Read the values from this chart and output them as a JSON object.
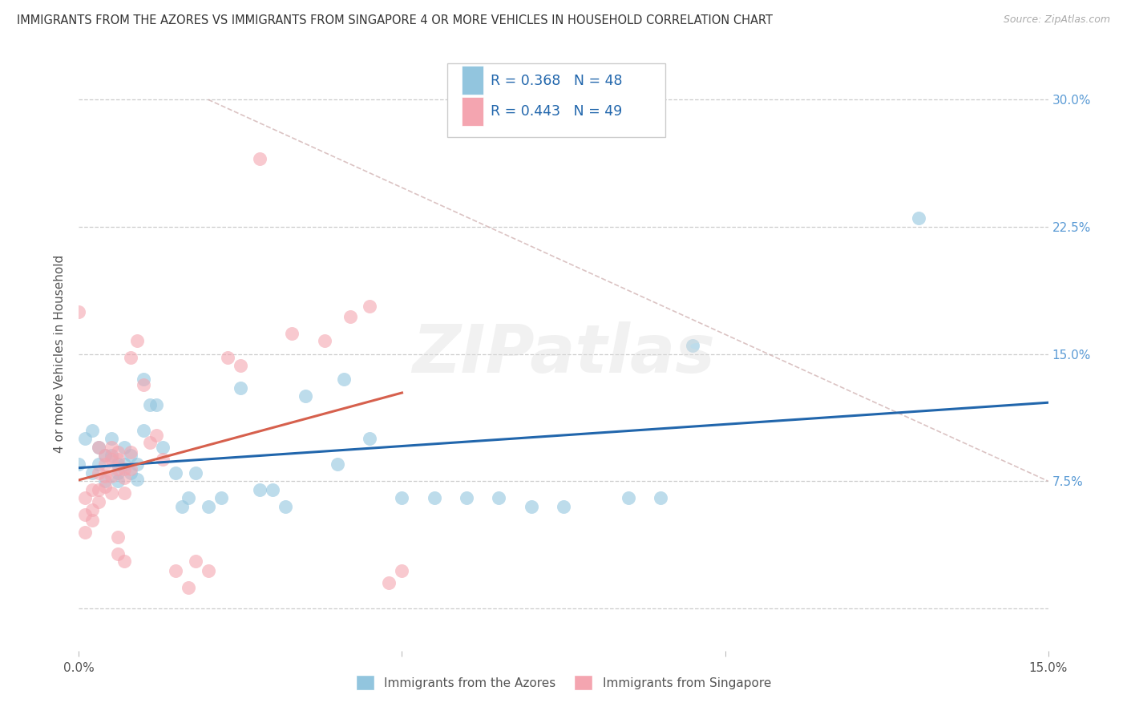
{
  "title": "IMMIGRANTS FROM THE AZORES VS IMMIGRANTS FROM SINGAPORE 4 OR MORE VEHICLES IN HOUSEHOLD CORRELATION CHART",
  "source": "Source: ZipAtlas.com",
  "xlabel_label": "Immigrants from the Azores",
  "xlabel_label2": "Immigrants from Singapore",
  "ylabel": "4 or more Vehicles in Household",
  "xlim": [
    0.0,
    0.15
  ],
  "ylim": [
    -0.025,
    0.325
  ],
  "yticks_right": [
    0.0,
    0.075,
    0.15,
    0.225,
    0.3
  ],
  "ytick_labels_right": [
    "",
    "7.5%",
    "15.0%",
    "22.5%",
    "30.0%"
  ],
  "azores_color": "#92c5de",
  "singapore_color": "#f4a5b0",
  "azores_line_color": "#2166ac",
  "singapore_line_color": "#d6604d",
  "R_azores": 0.368,
  "N_azores": 48,
  "R_singapore": 0.443,
  "N_singapore": 49,
  "watermark": "ZIPatlas",
  "background_color": "#ffffff",
  "azores_scatter": [
    [
      0.0,
      0.085
    ],
    [
      0.001,
      0.1
    ],
    [
      0.002,
      0.105
    ],
    [
      0.002,
      0.08
    ],
    [
      0.003,
      0.095
    ],
    [
      0.003,
      0.085
    ],
    [
      0.004,
      0.075
    ],
    [
      0.004,
      0.09
    ],
    [
      0.005,
      0.09
    ],
    [
      0.005,
      0.1
    ],
    [
      0.006,
      0.085
    ],
    [
      0.006,
      0.075
    ],
    [
      0.006,
      0.08
    ],
    [
      0.007,
      0.095
    ],
    [
      0.007,
      0.085
    ],
    [
      0.008,
      0.09
    ],
    [
      0.008,
      0.08
    ],
    [
      0.009,
      0.085
    ],
    [
      0.009,
      0.076
    ],
    [
      0.01,
      0.105
    ],
    [
      0.01,
      0.135
    ],
    [
      0.011,
      0.12
    ],
    [
      0.012,
      0.12
    ],
    [
      0.013,
      0.095
    ],
    [
      0.015,
      0.08
    ],
    [
      0.016,
      0.06
    ],
    [
      0.017,
      0.065
    ],
    [
      0.018,
      0.08
    ],
    [
      0.02,
      0.06
    ],
    [
      0.022,
      0.065
    ],
    [
      0.025,
      0.13
    ],
    [
      0.028,
      0.07
    ],
    [
      0.03,
      0.07
    ],
    [
      0.032,
      0.06
    ],
    [
      0.035,
      0.125
    ],
    [
      0.04,
      0.085
    ],
    [
      0.041,
      0.135
    ],
    [
      0.045,
      0.1
    ],
    [
      0.05,
      0.065
    ],
    [
      0.055,
      0.065
    ],
    [
      0.06,
      0.065
    ],
    [
      0.065,
      0.065
    ],
    [
      0.07,
      0.06
    ],
    [
      0.075,
      0.06
    ],
    [
      0.085,
      0.065
    ],
    [
      0.09,
      0.065
    ],
    [
      0.095,
      0.155
    ],
    [
      0.13,
      0.23
    ]
  ],
  "singapore_scatter": [
    [
      0.0,
      0.175
    ],
    [
      0.001,
      0.065
    ],
    [
      0.001,
      0.055
    ],
    [
      0.001,
      0.045
    ],
    [
      0.002,
      0.07
    ],
    [
      0.002,
      0.058
    ],
    [
      0.002,
      0.052
    ],
    [
      0.003,
      0.095
    ],
    [
      0.003,
      0.08
    ],
    [
      0.003,
      0.07
    ],
    [
      0.003,
      0.063
    ],
    [
      0.004,
      0.09
    ],
    [
      0.004,
      0.085
    ],
    [
      0.004,
      0.078
    ],
    [
      0.004,
      0.072
    ],
    [
      0.005,
      0.095
    ],
    [
      0.005,
      0.088
    ],
    [
      0.005,
      0.078
    ],
    [
      0.005,
      0.068
    ],
    [
      0.006,
      0.092
    ],
    [
      0.006,
      0.088
    ],
    [
      0.006,
      0.082
    ],
    [
      0.006,
      0.042
    ],
    [
      0.006,
      0.032
    ],
    [
      0.007,
      0.082
    ],
    [
      0.007,
      0.077
    ],
    [
      0.007,
      0.068
    ],
    [
      0.007,
      0.028
    ],
    [
      0.008,
      0.092
    ],
    [
      0.008,
      0.082
    ],
    [
      0.008,
      0.148
    ],
    [
      0.009,
      0.158
    ],
    [
      0.01,
      0.132
    ],
    [
      0.011,
      0.098
    ],
    [
      0.012,
      0.102
    ],
    [
      0.013,
      0.088
    ],
    [
      0.015,
      0.022
    ],
    [
      0.017,
      0.012
    ],
    [
      0.018,
      0.028
    ],
    [
      0.02,
      0.022
    ],
    [
      0.023,
      0.148
    ],
    [
      0.025,
      0.143
    ],
    [
      0.028,
      0.265
    ],
    [
      0.033,
      0.162
    ],
    [
      0.038,
      0.158
    ],
    [
      0.042,
      0.172
    ],
    [
      0.045,
      0.178
    ],
    [
      0.048,
      0.015
    ],
    [
      0.05,
      0.022
    ]
  ]
}
